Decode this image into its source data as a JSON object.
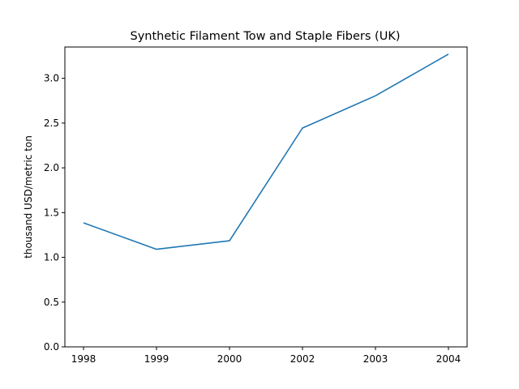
{
  "chart_data": {
    "type": "line",
    "title": "Synthetic Filament Tow and Staple Fibers (UK)",
    "xlabel": "",
    "ylabel": "thousand USD/metric ton",
    "categories": [
      "1998",
      "1999",
      "2000",
      "2002",
      "2003",
      "2004"
    ],
    "series": [
      {
        "values": [
          1.385,
          1.09,
          1.185,
          2.445,
          2.805,
          3.27
        ]
      }
    ],
    "yticks": [
      "0.0",
      "0.5",
      "1.0",
      "1.5",
      "2.0",
      "2.5",
      "3.0"
    ],
    "ylim": [
      0,
      3.35
    ],
    "grid": false,
    "legend": "none",
    "colors": {
      "line": "#1f77b4",
      "axis": "#000000"
    }
  }
}
